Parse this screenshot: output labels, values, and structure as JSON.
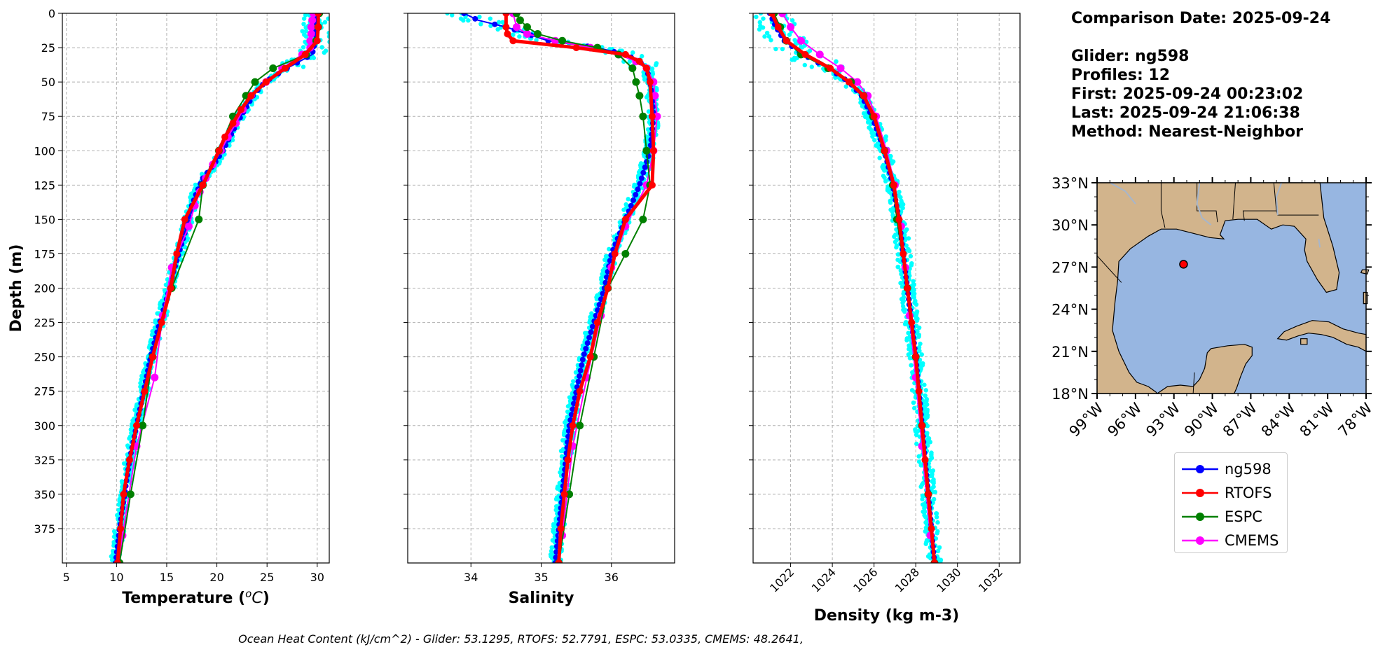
{
  "info": {
    "comparison": "Comparison Date: 2025-09-24",
    "glider": "Glider: ng598",
    "profiles": "Profiles: 12",
    "first": "First: 2025-09-24 00:23:02",
    "last": "Last: 2025-09-24 21:06:38",
    "method": "Method: Nearest-Neighbor"
  },
  "caption": "Ocean Heat Content (kJ/cm^2) - Glider: 53.1295,  RTOFS: 52.7791,  ESPC: 53.0335,  CMEMS: 48.2641,",
  "colors": {
    "glider": "#0000ff",
    "glider_raw": "#00ffff",
    "rtofs": "#ff0000",
    "espc": "#008000",
    "cmems": "#ff00ff",
    "ocean": "#97b6e1",
    "land": "#d2b48c"
  },
  "legend": [
    {
      "label": "ng598",
      "color": "#0000ff"
    },
    {
      "label": "RTOFS",
      "color": "#ff0000"
    },
    {
      "label": "ESPC",
      "color": "#008000"
    },
    {
      "label": "CMEMS",
      "color": "#ff00ff"
    }
  ],
  "chart_data": [
    {
      "type": "line",
      "xlabel": "Temperature ($^oC$)",
      "ylabel": "Depth (m)",
      "xlim": [
        4.6,
        31.2
      ],
      "ylim": [
        400,
        0
      ],
      "xticks": [
        5,
        10,
        15,
        20,
        25,
        30
      ],
      "yticks": [
        0,
        25,
        50,
        75,
        100,
        125,
        150,
        175,
        200,
        225,
        250,
        275,
        300,
        325,
        350,
        375
      ],
      "grid": true,
      "series": [
        {
          "name": "ng598",
          "y": [
            0,
            10,
            20,
            30,
            40,
            50,
            60,
            70,
            80,
            90,
            100,
            110,
            120,
            130,
            140,
            150,
            160,
            170,
            180,
            190,
            200,
            225,
            250,
            275,
            300,
            325,
            350,
            375,
            400
          ],
          "x": [
            30.0,
            29.9,
            29.8,
            29.5,
            27.0,
            24.8,
            23.6,
            22.8,
            22.0,
            21.3,
            20.6,
            19.7,
            18.6,
            18.0,
            17.5,
            17.2,
            16.8,
            16.4,
            16.0,
            15.6,
            15.3,
            14.3,
            13.4,
            12.7,
            12.0,
            11.3,
            10.8,
            10.3,
            9.9
          ]
        },
        {
          "name": "RTOFS",
          "y": [
            0,
            10,
            20,
            30,
            40,
            50,
            60,
            70,
            80,
            90,
            100,
            125,
            150,
            175,
            200,
            225,
            250,
            275,
            300,
            325,
            350,
            375,
            400
          ],
          "x": [
            30.1,
            30.1,
            30.0,
            28.8,
            26.8,
            24.9,
            23.4,
            22.4,
            21.6,
            20.8,
            20.2,
            18.6,
            16.8,
            16.0,
            15.4,
            14.5,
            13.6,
            12.8,
            12.0,
            11.3,
            10.7,
            10.4,
            10.1
          ]
        },
        {
          "name": "ESPC",
          "y": [
            0,
            10,
            20,
            30,
            40,
            50,
            60,
            75,
            100,
            125,
            150,
            200,
            250,
            300,
            350,
            400
          ],
          "x": [
            30.2,
            30.1,
            29.9,
            28.9,
            25.6,
            23.8,
            22.9,
            21.6,
            20.2,
            18.6,
            18.2,
            15.5,
            13.6,
            12.6,
            11.4,
            10.3
          ]
        },
        {
          "name": "CMEMS",
          "y": [
            0,
            5,
            10,
            15,
            20,
            25,
            30,
            40,
            50,
            60,
            70,
            80,
            90,
            100,
            110,
            120,
            130,
            140,
            155,
            185,
            220,
            265,
            315,
            380,
            400
          ],
          "x": [
            29.6,
            29.5,
            29.4,
            29.4,
            29.3,
            29.3,
            28.5,
            26.5,
            24.9,
            23.4,
            22.6,
            21.9,
            21.1,
            20.4,
            19.6,
            18.9,
            18.3,
            17.8,
            17.2,
            15.5,
            14.6,
            13.8,
            12.0,
            10.6,
            10.3
          ]
        }
      ]
    },
    {
      "type": "line",
      "xlabel": "Salinity",
      "xlim": [
        33.1,
        36.9
      ],
      "ylim": [
        400,
        0
      ],
      "xticks": [
        34,
        35,
        36
      ],
      "grid": true,
      "series": [
        {
          "name": "ng598",
          "y": [
            0,
            5,
            10,
            15,
            20,
            25,
            30,
            35,
            40,
            50,
            60,
            75,
            100,
            125,
            150,
            175,
            200,
            225,
            250,
            275,
            300,
            325,
            350,
            375,
            400
          ],
          "x": [
            33.9,
            34.1,
            34.5,
            34.8,
            35.1,
            35.8,
            36.2,
            36.4,
            36.5,
            36.55,
            36.58,
            36.6,
            36.55,
            36.4,
            36.2,
            36.0,
            35.9,
            35.75,
            35.6,
            35.5,
            35.4,
            35.35,
            35.3,
            35.25,
            35.2
          ]
        },
        {
          "name": "RTOFS",
          "y": [
            0,
            10,
            15,
            20,
            25,
            30,
            35,
            40,
            50,
            75,
            100,
            125,
            150,
            175,
            200,
            225,
            250,
            275,
            300,
            325,
            350,
            375,
            400
          ],
          "x": [
            34.5,
            34.5,
            34.52,
            34.6,
            35.5,
            36.2,
            36.4,
            36.5,
            36.55,
            36.58,
            36.6,
            36.58,
            36.2,
            36.05,
            35.95,
            35.8,
            35.7,
            35.55,
            35.45,
            35.38,
            35.33,
            35.28,
            35.25
          ]
        },
        {
          "name": "ESPC",
          "y": [
            0,
            5,
            10,
            15,
            20,
            25,
            30,
            40,
            50,
            60,
            75,
            100,
            125,
            150,
            175,
            200,
            250,
            300,
            350,
            400
          ],
          "x": [
            34.65,
            34.7,
            34.8,
            34.95,
            35.3,
            35.8,
            36.1,
            36.3,
            36.35,
            36.4,
            36.45,
            36.5,
            36.55,
            36.45,
            36.2,
            35.95,
            35.75,
            35.55,
            35.4,
            35.25
          ]
        },
        {
          "name": "CMEMS",
          "y": [
            0,
            10,
            15,
            20,
            25,
            30,
            35,
            40,
            50,
            60,
            75,
            100,
            125,
            155,
            185,
            220,
            265,
            315,
            380,
            400
          ],
          "x": [
            34.6,
            34.65,
            34.8,
            35.2,
            35.7,
            36.1,
            36.35,
            36.5,
            36.6,
            36.62,
            36.65,
            36.6,
            36.5,
            36.2,
            36.0,
            35.85,
            35.65,
            35.45,
            35.3,
            35.25
          ]
        }
      ]
    },
    {
      "type": "line",
      "xlabel": "Density (kg m-3)",
      "xlim": [
        1020.2,
        1033.0
      ],
      "ylim": [
        400,
        0
      ],
      "xticks": [
        1022,
        1024,
        1026,
        1028,
        1030,
        1032
      ],
      "grid": true,
      "series": [
        {
          "name": "ng598",
          "y": [
            0,
            10,
            20,
            30,
            40,
            50,
            60,
            75,
            100,
            125,
            150,
            175,
            200,
            225,
            250,
            275,
            300,
            325,
            350,
            375,
            400
          ],
          "x": [
            1021.0,
            1021.3,
            1021.7,
            1022.6,
            1023.8,
            1024.8,
            1025.4,
            1025.9,
            1026.5,
            1026.9,
            1027.2,
            1027.4,
            1027.6,
            1027.8,
            1028.0,
            1028.15,
            1028.3,
            1028.45,
            1028.6,
            1028.75,
            1028.9
          ]
        },
        {
          "name": "RTOFS",
          "y": [
            0,
            10,
            20,
            30,
            40,
            50,
            60,
            75,
            100,
            125,
            150,
            175,
            200,
            225,
            250,
            275,
            300,
            325,
            350,
            375,
            400
          ],
          "x": [
            1021.1,
            1021.4,
            1021.8,
            1022.7,
            1023.9,
            1024.8,
            1025.5,
            1026.0,
            1026.5,
            1026.95,
            1027.2,
            1027.4,
            1027.6,
            1027.8,
            1028.0,
            1028.15,
            1028.3,
            1028.45,
            1028.6,
            1028.75,
            1028.9
          ]
        },
        {
          "name": "ESPC",
          "y": [
            0,
            10,
            20,
            30,
            40,
            50,
            60,
            75,
            100,
            125,
            150,
            200,
            250,
            300,
            350,
            400
          ],
          "x": [
            1021.2,
            1021.5,
            1021.8,
            1022.5,
            1023.8,
            1024.9,
            1025.5,
            1025.95,
            1026.5,
            1026.9,
            1027.1,
            1027.6,
            1028.0,
            1028.3,
            1028.6,
            1028.9
          ]
        },
        {
          "name": "CMEMS",
          "y": [
            0,
            10,
            20,
            30,
            40,
            50,
            60,
            75,
            100,
            125,
            155,
            185,
            220,
            265,
            315,
            380,
            400
          ],
          "x": [
            1021.6,
            1022.0,
            1022.5,
            1023.4,
            1024.4,
            1025.2,
            1025.7,
            1026.1,
            1026.6,
            1027.0,
            1027.3,
            1027.5,
            1027.7,
            1028.0,
            1028.3,
            1028.7,
            1028.9
          ]
        }
      ]
    }
  ],
  "map": {
    "lon_range": [
      -99,
      -78
    ],
    "lat_range": [
      18,
      33
    ],
    "lat_ticks": [
      "33°N",
      "30°N",
      "27°N",
      "24°N",
      "21°N",
      "18°N"
    ],
    "lon_ticks": [
      "99°W",
      "96°W",
      "93°W",
      "90°W",
      "87°W",
      "84°W",
      "81°W",
      "78°W"
    ],
    "glider_position": {
      "lon": -92.25,
      "lat": 27.2
    }
  }
}
